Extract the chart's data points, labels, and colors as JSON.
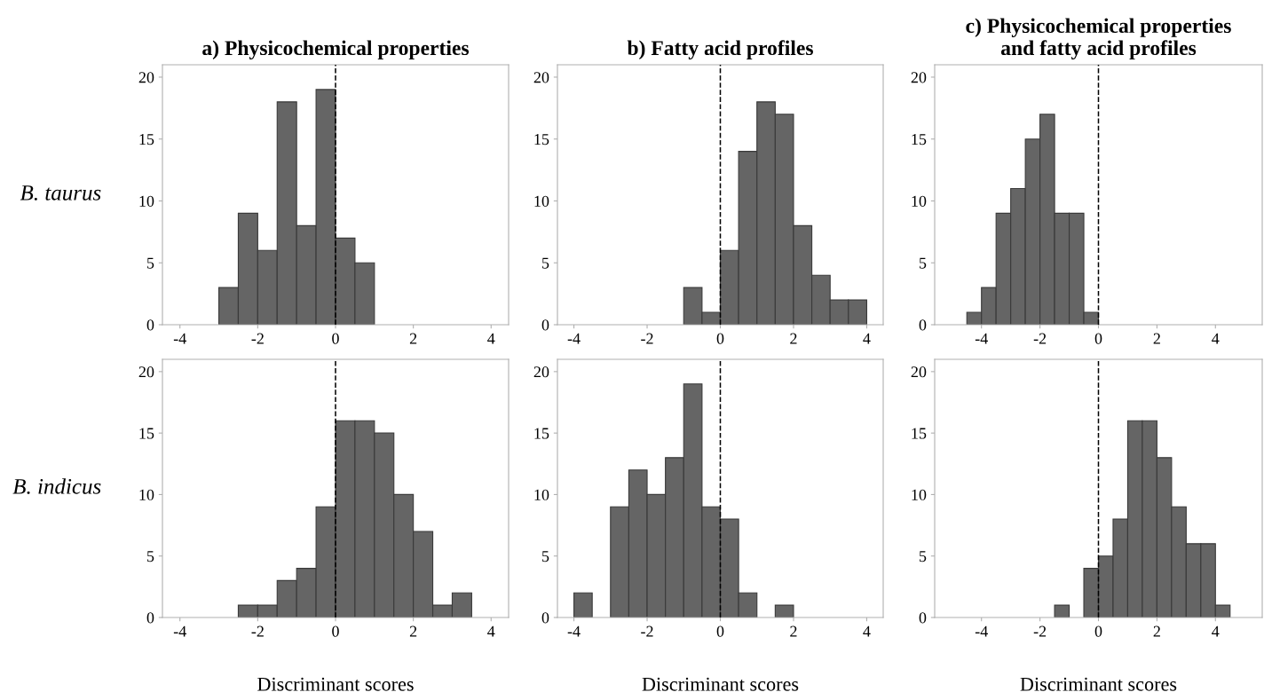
{
  "chart_data": [
    {
      "type": "histogram",
      "title": "a) Physicochemical properties",
      "ylabel": "B. taurus",
      "bins": [
        -3,
        -2.5,
        -2,
        -1.5,
        -1,
        -0.5,
        0,
        0.5,
        1
      ],
      "values": [
        3,
        9,
        6,
        18,
        8,
        19,
        7,
        5
      ],
      "color": "#656565",
      "xlim": [
        -4.45,
        4.45
      ],
      "xticks": [
        -4,
        -2,
        0,
        2,
        4
      ],
      "ylim": [
        0,
        21
      ],
      "yticks": [
        0,
        5,
        10,
        15,
        20
      ],
      "ref_lines": [
        {
          "axis": "x",
          "value": 0,
          "line_style": "dashed",
          "color": "#000000"
        }
      ],
      "grid": false
    },
    {
      "type": "histogram",
      "title": "b) Fatty acid profiles",
      "bins": [
        -1,
        -0.5,
        0,
        0.5,
        1,
        1.5,
        2,
        2.5,
        3,
        3.5,
        4
      ],
      "values": [
        3,
        1,
        6,
        14,
        18,
        17,
        8,
        4,
        2,
        2
      ],
      "color": "#656565",
      "xlim": [
        -4.45,
        4.45
      ],
      "xticks": [
        -4,
        -2,
        0,
        2,
        4
      ],
      "ylim": [
        0,
        21
      ],
      "yticks": [
        0,
        5,
        10,
        15,
        20
      ],
      "ref_lines": [
        {
          "axis": "x",
          "value": 0,
          "line_style": "dashed",
          "color": "#000000"
        }
      ],
      "grid": false
    },
    {
      "type": "histogram",
      "title": "c) Physicochemical properties\nand fatty acid profiles",
      "bins": [
        -4.5,
        -4,
        -3.5,
        -3,
        -2.5,
        -2,
        -1.5,
        -1,
        -0.5,
        0
      ],
      "values": [
        1,
        3,
        9,
        11,
        15,
        17,
        9,
        9,
        1
      ],
      "color": "#656565",
      "xlim": [
        -5.6,
        5.6
      ],
      "xticks": [
        -4,
        -2,
        0,
        2,
        4
      ],
      "ylim": [
        0,
        21
      ],
      "yticks": [
        0,
        5,
        10,
        15,
        20
      ],
      "ref_lines": [
        {
          "axis": "x",
          "value": 0,
          "line_style": "dashed",
          "color": "#000000"
        }
      ],
      "grid": false
    },
    {
      "type": "histogram",
      "ylabel": "B. indicus",
      "xlabel": "Discriminant scores",
      "bins": [
        -2.5,
        -2,
        -1.5,
        -1,
        -0.5,
        0,
        0.5,
        1,
        1.5,
        2,
        2.5,
        3,
        3.5
      ],
      "values": [
        1,
        1,
        3,
        4,
        9,
        16,
        16,
        15,
        10,
        7,
        1,
        2
      ],
      "color": "#656565",
      "xlim": [
        -4.45,
        4.45
      ],
      "xticks": [
        -4,
        -2,
        0,
        2,
        4
      ],
      "ylim": [
        0,
        21
      ],
      "yticks": [
        0,
        5,
        10,
        15,
        20
      ],
      "ref_lines": [
        {
          "axis": "x",
          "value": 0,
          "line_style": "dashed",
          "color": "#000000"
        }
      ],
      "grid": false
    },
    {
      "type": "histogram",
      "xlabel": "Discriminant scores",
      "bins": [
        -4,
        -3.5,
        -3,
        -2.5,
        -2,
        -1.5,
        -1,
        -0.5,
        0,
        0.5,
        1,
        1.5,
        2
      ],
      "values": [
        2,
        0,
        9,
        12,
        10,
        13,
        19,
        9,
        8,
        2,
        0,
        1
      ],
      "color": "#656565",
      "xlim": [
        -4.45,
        4.45
      ],
      "xticks": [
        -4,
        -2,
        0,
        2,
        4
      ],
      "ylim": [
        0,
        21
      ],
      "yticks": [
        0,
        5,
        10,
        15,
        20
      ],
      "ref_lines": [
        {
          "axis": "x",
          "value": 0,
          "line_style": "dashed",
          "color": "#000000"
        }
      ],
      "grid": false
    },
    {
      "type": "histogram",
      "xlabel": "Discriminant scores",
      "bins": [
        -1.5,
        -1,
        -0.5,
        0,
        0.5,
        1,
        1.5,
        2,
        2.5,
        3,
        3.5,
        4,
        4.5
      ],
      "values": [
        1,
        0,
        4,
        5,
        8,
        16,
        16,
        13,
        9,
        6,
        6,
        1
      ],
      "color": "#656565",
      "xlim": [
        -5.6,
        5.6
      ],
      "xticks": [
        -4,
        -2,
        0,
        2,
        4
      ],
      "ylim": [
        0,
        21
      ],
      "yticks": [
        0,
        5,
        10,
        15,
        20
      ],
      "ref_lines": [
        {
          "axis": "x",
          "value": 0,
          "line_style": "dashed",
          "color": "#000000"
        }
      ],
      "grid": false
    }
  ]
}
